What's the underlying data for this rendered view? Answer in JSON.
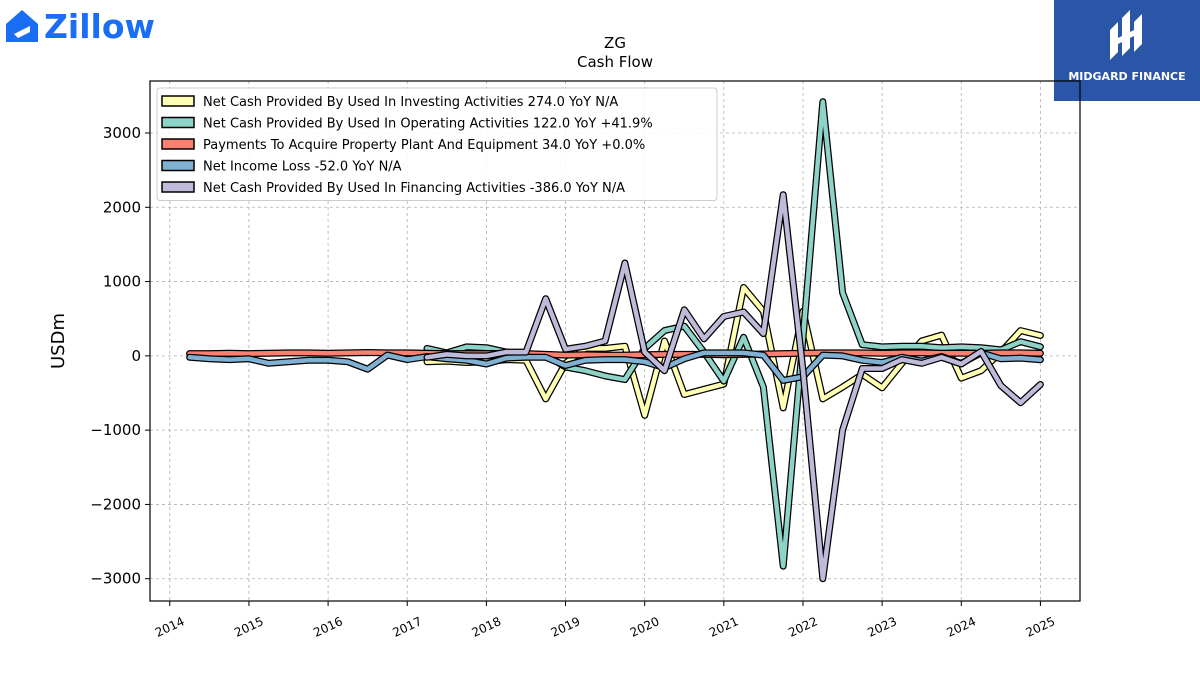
{
  "brand_left": {
    "name": "Zillow",
    "color": "#1a6ef5"
  },
  "brand_right": {
    "name": "MIDGARD FINANCE",
    "bg_color": "#2b55a6"
  },
  "chart_data": {
    "type": "line",
    "title": "ZG",
    "subtitle": "Cash Flow",
    "ylabel": "USDm",
    "xlabel": "",
    "xlim": [
      2013.75,
      2025.5
    ],
    "ylim": [
      -3300,
      3700
    ],
    "yticks": [
      -3000,
      -2000,
      -1000,
      0,
      1000,
      2000,
      3000
    ],
    "ytick_labels": [
      "−3000",
      "−2000",
      "−1000",
      "0",
      "1000",
      "2000",
      "3000"
    ],
    "xticks": [
      2014,
      2015,
      2016,
      2017,
      2018,
      2019,
      2020,
      2021,
      2022,
      2023,
      2024,
      2025
    ],
    "grid": true,
    "legend_position": "top-left",
    "series": [
      {
        "name": "Net Cash Provided By Used In Investing Activities",
        "legend_label": "Net Cash Provided By Used In Investing Activities  274.0 YoY N/A",
        "color": "#ffffb3",
        "x": [
          2017.25,
          2017.5,
          2017.75,
          2018.0,
          2018.25,
          2018.5,
          2018.75,
          2019.0,
          2019.25,
          2019.5,
          2019.75,
          2020.0,
          2020.25,
          2020.5,
          2020.75,
          2021.0,
          2021.25,
          2021.5,
          2021.75,
          2022.0,
          2022.25,
          2022.5,
          2022.75,
          2023.0,
          2023.25,
          2023.5,
          2023.75,
          2024.0,
          2024.25,
          2024.5,
          2024.75,
          2025.0
        ],
        "values": [
          -80,
          -70,
          -90,
          -80,
          -50,
          -60,
          -580,
          -100,
          100,
          100,
          130,
          -800,
          200,
          -520,
          -450,
          -380,
          920,
          600,
          -700,
          600,
          -580,
          -420,
          -250,
          -430,
          -100,
          200,
          280,
          -300,
          -200,
          50,
          340,
          274
        ]
      },
      {
        "name": "Net Cash Provided By Used In Operating Activities",
        "legend_label": "Net Cash Provided By Used In Operating Activities  122.0 YoY +41.9%",
        "color": "#8dd3c7",
        "x": [
          2017.25,
          2017.5,
          2017.75,
          2018.0,
          2018.25,
          2018.5,
          2018.75,
          2019.0,
          2019.25,
          2019.5,
          2019.75,
          2020.0,
          2020.25,
          2020.5,
          2020.75,
          2021.0,
          2021.25,
          2021.5,
          2021.75,
          2022.0,
          2022.25,
          2022.5,
          2022.75,
          2023.0,
          2023.25,
          2023.5,
          2023.75,
          2024.0,
          2024.25,
          2024.5,
          2024.75,
          2025.0
        ],
        "values": [
          100,
          40,
          120,
          110,
          50,
          20,
          10,
          -150,
          -200,
          -270,
          -320,
          100,
          340,
          400,
          50,
          -340,
          250,
          -420,
          -2830,
          240,
          3420,
          850,
          150,
          120,
          130,
          130,
          110,
          120,
          110,
          80,
          190,
          122
        ]
      },
      {
        "name": "Payments To Acquire Property Plant And Equipment",
        "legend_label": "Payments To Acquire Property Plant And Equipment  34.0 YoY +0.0%",
        "color": "#fb8072",
        "x": [
          2014.25,
          2014.5,
          2014.75,
          2015.0,
          2015.25,
          2015.5,
          2015.75,
          2016.0,
          2016.25,
          2016.5,
          2016.75,
          2017.0,
          2017.25,
          2017.5,
          2017.75,
          2018.0,
          2018.25,
          2018.5,
          2018.75,
          2019.0,
          2019.25,
          2019.5,
          2019.75,
          2020.0,
          2020.25,
          2020.5,
          2020.75,
          2021.0,
          2021.25,
          2021.5,
          2021.75,
          2022.0,
          2022.25,
          2022.5,
          2022.75,
          2023.0,
          2023.25,
          2023.5,
          2023.75,
          2024.0,
          2024.25,
          2024.5,
          2024.75,
          2025.0
        ],
        "values": [
          30,
          30,
          35,
          30,
          35,
          40,
          40,
          35,
          40,
          45,
          40,
          40,
          35,
          30,
          30,
          30,
          35,
          30,
          20,
          10,
          15,
          10,
          10,
          15,
          20,
          20,
          20,
          15,
          20,
          25,
          30,
          35,
          40,
          40,
          40,
          35,
          40,
          40,
          35,
          35,
          35,
          40,
          40,
          34
        ]
      },
      {
        "name": "Net Income Loss",
        "legend_label": "Net Income Loss  -52.0 YoY N/A",
        "color": "#80b1d3",
        "x": [
          2014.25,
          2014.5,
          2014.75,
          2015.0,
          2015.25,
          2015.5,
          2015.75,
          2016.0,
          2016.25,
          2016.5,
          2016.75,
          2017.0,
          2017.25,
          2017.5,
          2017.75,
          2018.0,
          2018.25,
          2018.5,
          2018.75,
          2019.0,
          2019.25,
          2019.5,
          2019.75,
          2020.0,
          2020.25,
          2020.5,
          2020.75,
          2021.0,
          2021.25,
          2021.5,
          2021.75,
          2022.0,
          2022.25,
          2022.5,
          2022.75,
          2023.0,
          2023.25,
          2023.5,
          2023.75,
          2024.0,
          2024.25,
          2024.5,
          2024.75,
          2025.0
        ],
        "values": [
          -20,
          -40,
          -50,
          -40,
          -100,
          -80,
          -60,
          -60,
          -80,
          -180,
          10,
          -50,
          -10,
          -40,
          -60,
          -110,
          -30,
          -20,
          -20,
          -130,
          -60,
          -50,
          -50,
          -80,
          -160,
          -40,
          40,
          40,
          40,
          10,
          -330,
          -280,
          10,
          0,
          -60,
          -90,
          -20,
          -70,
          -10,
          -100,
          40,
          -40,
          -30,
          -52
        ]
      },
      {
        "name": "Net Cash Provided By Used In Financing Activities",
        "legend_label": "Net Cash Provided By Used In Financing Activities  -386.0 YoY N/A",
        "color": "#bebada",
        "x": [
          2017.25,
          2017.5,
          2017.75,
          2018.0,
          2018.25,
          2018.5,
          2018.75,
          2019.0,
          2019.25,
          2019.5,
          2019.75,
          2020.0,
          2020.25,
          2020.5,
          2020.75,
          2021.0,
          2021.25,
          2021.5,
          2021.75,
          2022.0,
          2022.25,
          2022.5,
          2022.75,
          2023.0,
          2023.25,
          2023.5,
          2023.75,
          2024.0,
          2024.25,
          2024.5,
          2024.75,
          2025.0
        ],
        "values": [
          -20,
          20,
          0,
          0,
          50,
          50,
          770,
          90,
          130,
          200,
          1250,
          50,
          -200,
          620,
          230,
          530,
          590,
          300,
          2170,
          -200,
          -3000,
          -1000,
          -170,
          -170,
          -50,
          -100,
          -20,
          -110,
          60,
          -400,
          -630,
          -386
        ]
      }
    ]
  }
}
